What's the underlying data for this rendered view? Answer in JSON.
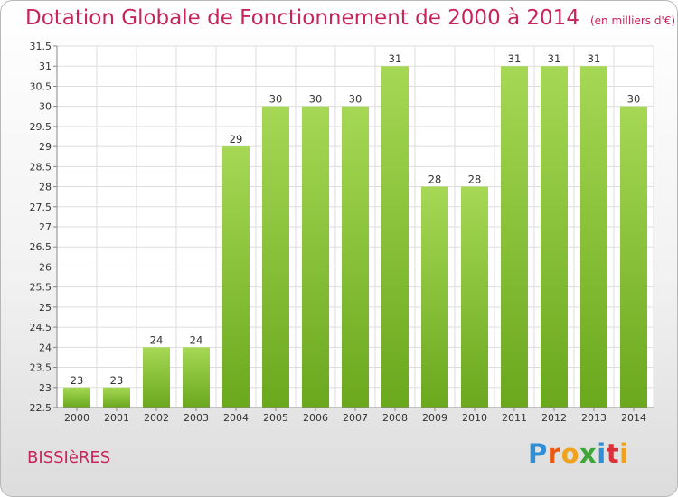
{
  "header": {
    "title": "Dotation Globale de Fonctionnement de 2000 à 2014",
    "unit_note": "(en milliers d'€)"
  },
  "footer": {
    "place": "BISSIèRES",
    "logo_letters": [
      "P",
      "r",
      "o",
      "x",
      "i",
      "t",
      "i"
    ],
    "logo_colors": [
      "#2f8fd6",
      "#e85a14",
      "#f0a21c",
      "#3da637",
      "#2f8fd6",
      "#d8313b",
      "#f0a21c"
    ]
  },
  "colors": {
    "bar_light": "#a6d855",
    "bar_dark": "#6aa81e",
    "title": "#c8245a"
  },
  "chart_data": {
    "type": "bar",
    "title": "Dotation Globale de Fonctionnement de 2000 à 2014",
    "subtitle": "(en milliers d'€)",
    "xlabel": "",
    "ylabel": "",
    "categories": [
      "2000",
      "2001",
      "2002",
      "2003",
      "2004",
      "2005",
      "2006",
      "2007",
      "2008",
      "2009",
      "2010",
      "2011",
      "2012",
      "2013",
      "2014"
    ],
    "values": [
      23,
      23,
      24,
      24,
      29,
      30,
      30,
      30,
      31,
      28,
      28,
      31,
      31,
      31,
      30
    ],
    "ylim": [
      22.5,
      31.5
    ],
    "yticks": [
      "22.5",
      "23",
      "23.5",
      "24",
      "24.5",
      "25",
      "25.5",
      "26",
      "26.5",
      "27",
      "27.5",
      "28",
      "28.5",
      "29",
      "29.5",
      "30",
      "30.5",
      "31",
      "31.5"
    ],
    "grid": true,
    "legend": "none"
  }
}
